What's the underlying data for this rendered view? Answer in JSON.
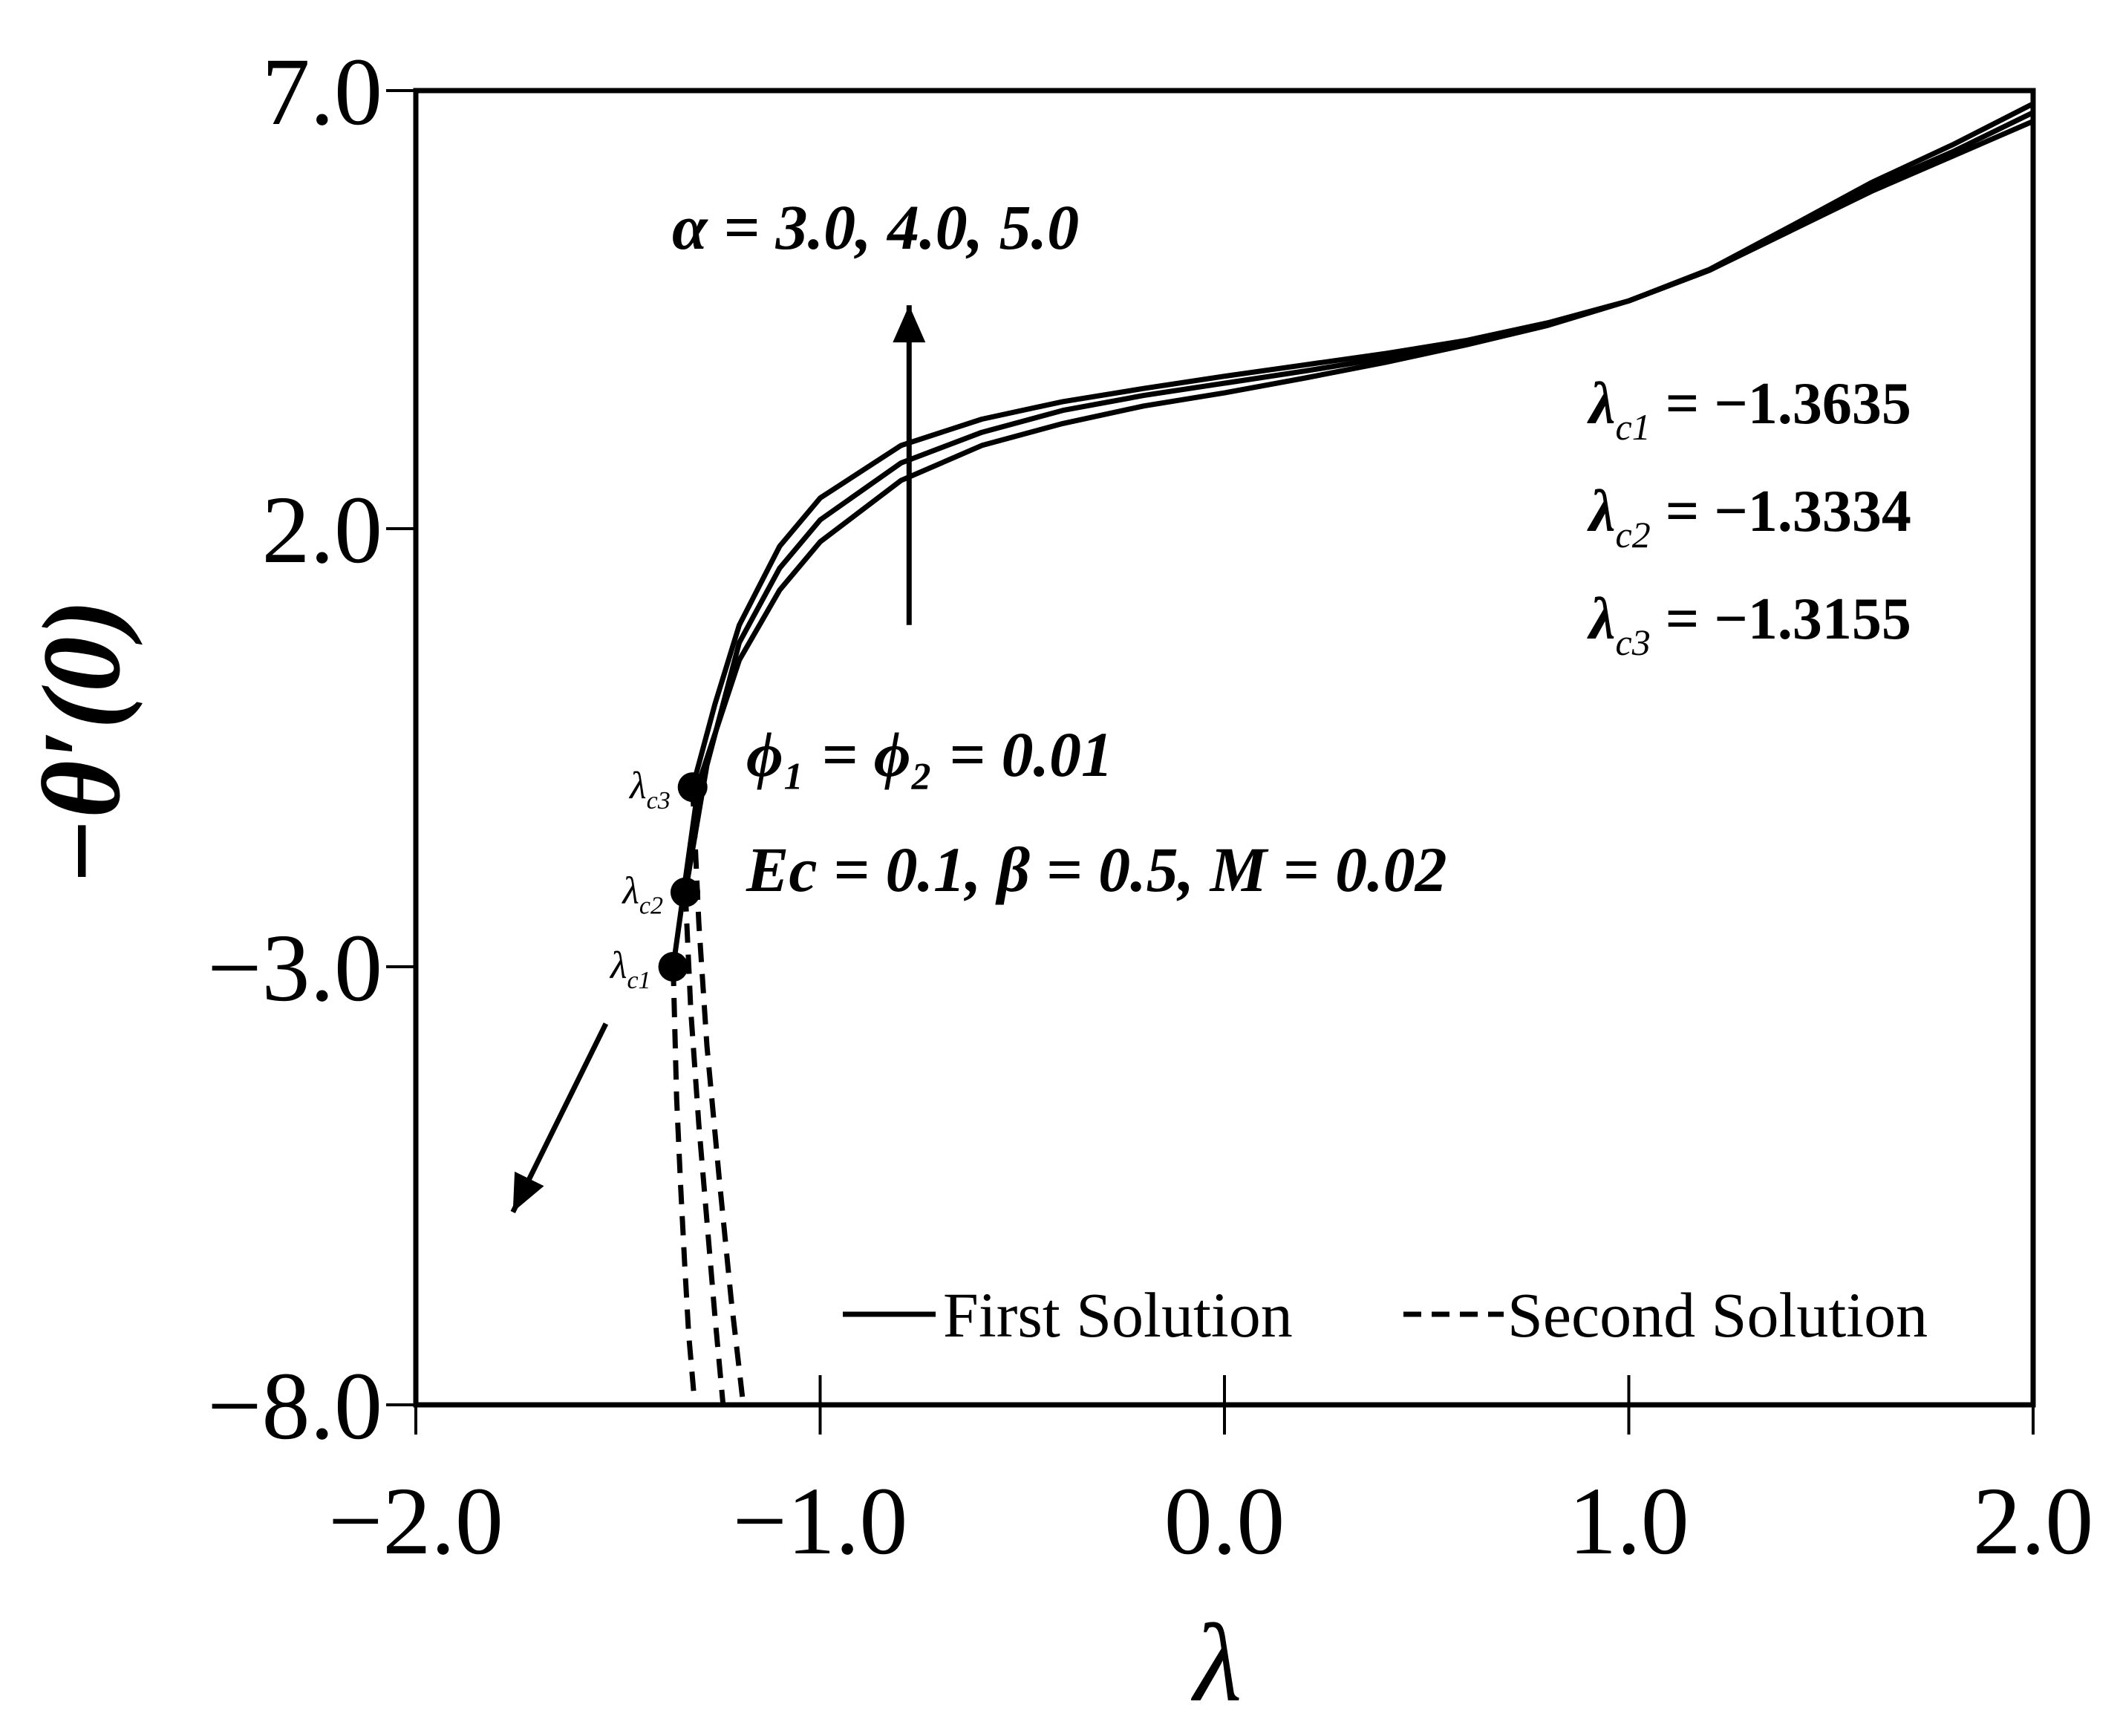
{
  "chart_data": {
    "type": "line",
    "xlabel": "λ",
    "ylabel": "−θ′(0)",
    "xlim": [
      -2.0,
      2.0
    ],
    "ylim": [
      -8.0,
      7.0
    ],
    "x_ticks": [
      "−2.0",
      "−1.0",
      "0.0",
      "1.0",
      "2.0"
    ],
    "y_ticks": [
      "−8.0",
      "−3.0",
      "2.0",
      "7.0"
    ],
    "grid": false,
    "legend_position": "bottom-right",
    "legend": {
      "first": "First Solution",
      "second": "Second Solution"
    },
    "series": [
      {
        "name": "α = 3.0",
        "style": "solid",
        "x": [
          -1.3635,
          -1.3,
          -1.2,
          -1.1,
          -1.0,
          -0.8,
          -0.6,
          -0.4,
          -0.2,
          0.0,
          0.2,
          0.4,
          0.6,
          0.8,
          1.0,
          1.2,
          1.4,
          1.6,
          1.8,
          2.0
        ],
        "y": [
          -3.0,
          -0.9,
          0.5,
          1.3,
          1.85,
          2.55,
          2.95,
          3.2,
          3.4,
          3.55,
          3.72,
          3.9,
          4.1,
          4.32,
          4.6,
          4.95,
          5.4,
          5.85,
          6.25,
          6.65
        ]
      },
      {
        "name": "α = 4.0",
        "style": "solid",
        "x": [
          -1.3334,
          -1.28,
          -1.2,
          -1.1,
          -1.0,
          -0.8,
          -0.6,
          -0.4,
          -0.2,
          0.0,
          0.2,
          0.4,
          0.6,
          0.8,
          1.0,
          1.2,
          1.4,
          1.6,
          1.8,
          2.0
        ],
        "y": [
          -2.15,
          -0.7,
          0.7,
          1.55,
          2.1,
          2.75,
          3.1,
          3.35,
          3.52,
          3.66,
          3.8,
          3.95,
          4.12,
          4.33,
          4.6,
          4.95,
          5.42,
          5.9,
          6.3,
          6.75
        ]
      },
      {
        "name": "α = 5.0",
        "style": "solid",
        "x": [
          -1.3155,
          -1.26,
          -1.2,
          -1.1,
          -1.0,
          -0.8,
          -0.6,
          -0.4,
          -0.2,
          0.0,
          0.2,
          0.4,
          0.6,
          0.8,
          1.0,
          1.2,
          1.4,
          1.6,
          1.8,
          2.0
        ],
        "y": [
          -0.95,
          0.0,
          0.9,
          1.8,
          2.35,
          2.95,
          3.25,
          3.45,
          3.6,
          3.74,
          3.87,
          4.0,
          4.15,
          4.35,
          4.6,
          4.96,
          5.45,
          5.95,
          6.38,
          6.85
        ]
      },
      {
        "name": "α = 3.0",
        "style": "dashed",
        "x": [
          -1.3635,
          -1.355,
          -1.345,
          -1.335,
          -1.325,
          -1.31
        ],
        "y": [
          -3.0,
          -4.5,
          -5.5,
          -6.4,
          -7.2,
          -8.0
        ]
      },
      {
        "name": "α = 4.0",
        "style": "dashed",
        "x": [
          -1.3334,
          -1.32,
          -1.3,
          -1.28,
          -1.26,
          -1.24
        ],
        "y": [
          -2.15,
          -3.5,
          -4.8,
          -5.9,
          -7.0,
          -8.0
        ]
      },
      {
        "name": "α = 5.0",
        "style": "dashed",
        "x": [
          -1.3155,
          -1.3,
          -1.28,
          -1.25,
          -1.22,
          -1.19
        ],
        "y": [
          -0.95,
          -2.5,
          -3.9,
          -5.4,
          -6.8,
          -8.0
        ]
      }
    ],
    "critical_points": [
      {
        "label_main": "λ",
        "label_sub": "c1",
        "x": -1.3635,
        "y": -3.0
      },
      {
        "label_main": "λ",
        "label_sub": "c2",
        "x": -1.3334,
        "y": -2.15
      },
      {
        "label_main": "λ",
        "label_sub": "c3",
        "x": -1.3155,
        "y": -0.95
      }
    ],
    "annotations": {
      "alpha": "α = 3.0, 4.0, 5.0",
      "params1": "ϕ₁ = ϕ₂ = 0.01",
      "params2": "Ec = 0.1,  β = 0.5,  M = 0.02",
      "critical_values": [
        {
          "main": "λ",
          "sub": "c1",
          "rest": " = −1.3635"
        },
        {
          "main": "λ",
          "sub": "c2",
          "rest": " = −1.3334"
        },
        {
          "main": "λ",
          "sub": "c3",
          "rest": " = −1.3155"
        }
      ]
    },
    "arrows": [
      {
        "from": [
          -0.78,
          0.9
        ],
        "to": [
          -0.78,
          4.55
        ]
      },
      {
        "from": [
          -1.53,
          -3.65
        ],
        "to": [
          -1.76,
          -5.8
        ]
      }
    ]
  }
}
